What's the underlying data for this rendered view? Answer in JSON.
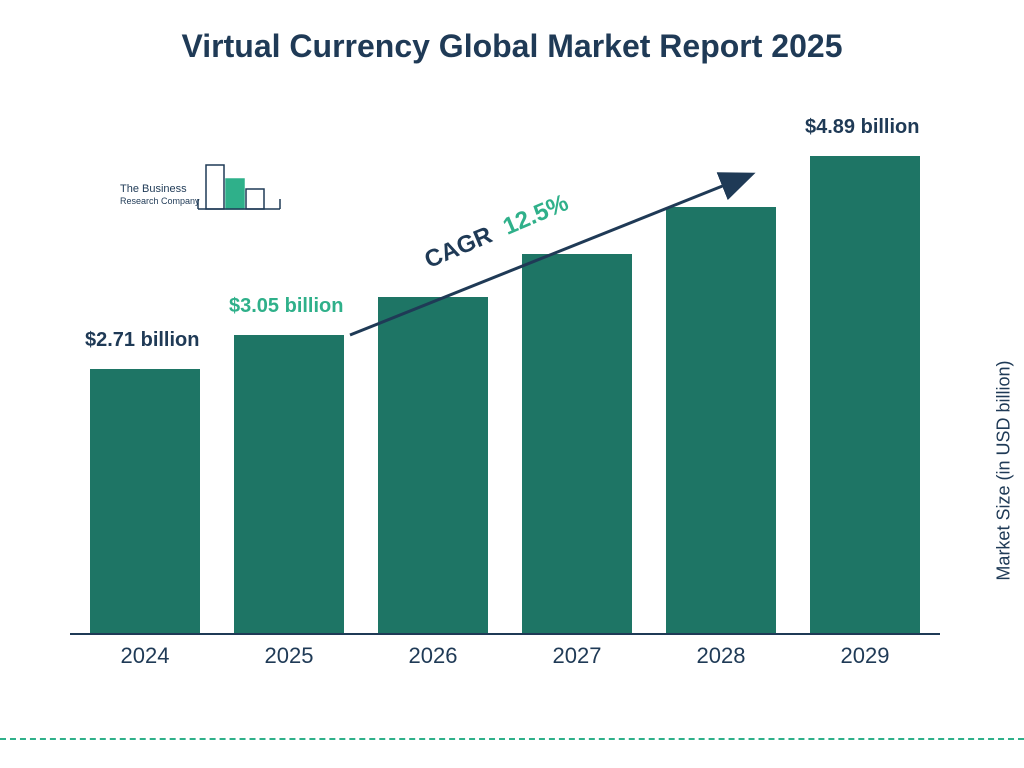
{
  "title": "Virtual Currency Global Market Report 2025",
  "chart": {
    "type": "bar",
    "categories": [
      "2024",
      "2025",
      "2026",
      "2027",
      "2028",
      "2029"
    ],
    "values": [
      2.71,
      3.05,
      3.44,
      3.88,
      4.36,
      4.89
    ],
    "bar_color": "#1e7565",
    "ylim": [
      0,
      5.0
    ],
    "axis_color": "#1f3a56",
    "background_color": "#ffffff",
    "xlabel_fontsize": 22,
    "ylabel": "Market Size (in USD billion)",
    "ylabel_fontsize": 18,
    "bar_labels": [
      {
        "index": 0,
        "text": "$2.71 billion",
        "color": "#1f3a56"
      },
      {
        "index": 1,
        "text": "$3.05 billion",
        "color": "#2fb08a"
      },
      {
        "index": 5,
        "text": "$4.89 billion",
        "color": "#1f3a56"
      }
    ]
  },
  "cagr": {
    "label": "CAGR",
    "value": "12.5%",
    "label_color": "#1f3a56",
    "value_color": "#2fb08a",
    "fontsize": 24,
    "arrow_color": "#1f3a56"
  },
  "logo": {
    "line1": "The Business",
    "line2": "Research Company",
    "accent_color": "#2fb08a",
    "outline_color": "#1f3a56"
  },
  "title_style": {
    "fontsize": 32,
    "color": "#1f3a56",
    "weight": 700
  },
  "footer_dash_color": "#2fb08a"
}
